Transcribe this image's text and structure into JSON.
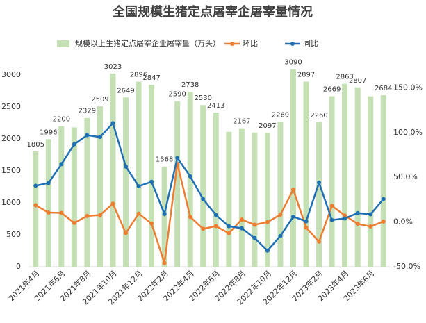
{
  "chart_data": {
    "type": "bar",
    "title": "全国规模生猪定点屠宰企屠宰量情况",
    "categories": [
      "2021年4月",
      null,
      "2021年6月",
      null,
      "2021年8月",
      null,
      "2021年10月",
      null,
      "2021年12月",
      null,
      "2022年2月",
      null,
      "2022年4月",
      null,
      "2022年6月",
      null,
      "2022年8月",
      null,
      "2022年10月",
      null,
      "2022年12月",
      null,
      "2023年2月",
      null,
      "2023年4月",
      null,
      "2023年6月",
      null
    ],
    "series": [
      {
        "name": "规模以上生猪定点屠宰企业屠宰量（万头）",
        "type": "bar",
        "color": "#c5e0b4",
        "values": [
          1805,
          1996,
          2200,
          2180,
          2329,
          2509,
          3023,
          2649,
          2896,
          2847,
          1568,
          2590,
          2738,
          2530,
          2413,
          2111,
          2167,
          2100,
          2097,
          2269,
          3090,
          2897,
          2260,
          2669,
          2863,
          2807,
          2667,
          2684
        ],
        "value_labels": [
          "1805",
          "1996",
          "2200",
          null,
          "2329",
          "2509",
          "3023",
          "2649",
          "2896",
          "2847",
          "1568",
          "2590",
          "2738",
          "2530",
          "2413",
          null,
          "2167",
          null,
          "2097",
          "2269",
          "3090",
          "2897",
          "2260",
          "2669",
          "2863",
          "2807",
          null,
          "2684"
        ]
      },
      {
        "name": "环比",
        "type": "line",
        "axis": "y2",
        "color": "#ed7d31",
        "values": [
          18.7,
          10.6,
          10.2,
          -1,
          6.8,
          7.7,
          20.5,
          -12.4,
          9.3,
          -1.7,
          -45.9,
          65.2,
          5.7,
          -7.6,
          -4.6,
          -12.5,
          2.7,
          -3,
          -0.1,
          8.2,
          36.2,
          -6.2,
          -22,
          18.1,
          7.3,
          -2,
          -5,
          0.6
        ]
      },
      {
        "name": "同比",
        "type": "line",
        "axis": "y2",
        "color": "#1f6fb5",
        "values": [
          40.5,
          43.6,
          64.6,
          87,
          97,
          95,
          110.5,
          62,
          40,
          45,
          9,
          71.6,
          51,
          25.7,
          7.8,
          -4.7,
          -7,
          -18,
          -32,
          -15.6,
          6,
          0.8,
          44,
          2.2,
          4,
          10,
          8.6,
          25.7
        ]
      }
    ],
    "ylim": [
      0,
      3500
    ],
    "yticks": [
      0,
      500,
      1000,
      1500,
      2000,
      2500,
      3000
    ],
    "y2lim": [
      -50,
      200
    ],
    "y2ticks": [
      {
        "value": -50,
        "label": "-50.0%"
      },
      {
        "value": 0,
        "label": "0.0%"
      },
      {
        "value": 50,
        "label": "50.0%"
      },
      {
        "value": 100,
        "label": "100.0%"
      },
      {
        "value": 150,
        "label": "150.0%"
      }
    ]
  }
}
